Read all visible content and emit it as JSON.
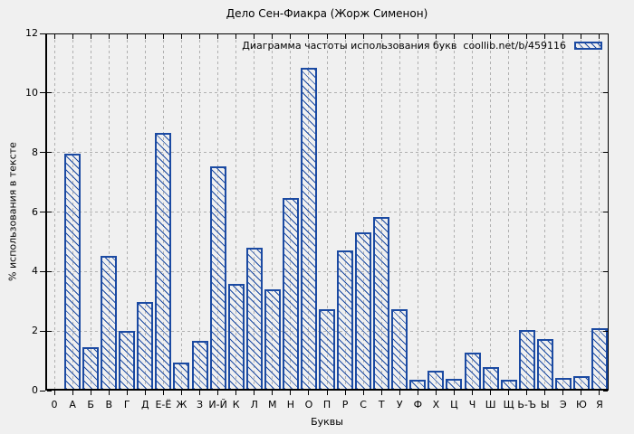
{
  "title": "Дело Сен-Фиакра (Жорж Сименон)",
  "legend": {
    "label": "Диаграмма частоты использования букв  coollib.net/b/459116"
  },
  "axes": {
    "xlabel": "Буквы",
    "ylabel": "% использования в тексте",
    "y_ticks": [
      0,
      2,
      4,
      6,
      8,
      10,
      12
    ]
  },
  "colors": {
    "bar": "#1b4aa2",
    "grid": "#b0b0b0",
    "background": "#f0f0f0",
    "axis": "#000000"
  },
  "chart_data": {
    "type": "bar",
    "title": "Дело Сен-Фиакра (Жорж Сименон)",
    "xlabel": "Буквы",
    "ylabel": "% использования в тексте",
    "ylim": [
      0,
      12
    ],
    "grid": true,
    "legend_position": "top-right-inside",
    "legend_label": "Диаграмма частоты использования букв  coollib.net/b/459116",
    "hatch": "\\",
    "categories": [
      "0",
      "А",
      "Б",
      "В",
      "Г",
      "Д",
      "Е-Ё",
      "Ж",
      "З",
      "И-Й",
      "К",
      "Л",
      "М",
      "Н",
      "О",
      "П",
      "Р",
      "С",
      "Т",
      "У",
      "Ф",
      "Х",
      "Ц",
      "Ч",
      "Ш",
      "Щ",
      "Ь-Ъ",
      "Ы",
      "Э",
      "Ю",
      "Я"
    ],
    "values": [
      0,
      7.97,
      1.45,
      4.52,
      2.0,
      2.97,
      8.65,
      0.95,
      1.68,
      7.53,
      3.58,
      4.81,
      3.4,
      6.48,
      10.85,
      2.74,
      4.72,
      5.31,
      5.82,
      2.74,
      0.37,
      0.66,
      0.38,
      1.28,
      0.8,
      0.36,
      2.03,
      1.72,
      0.44,
      0.49,
      2.1
    ]
  }
}
